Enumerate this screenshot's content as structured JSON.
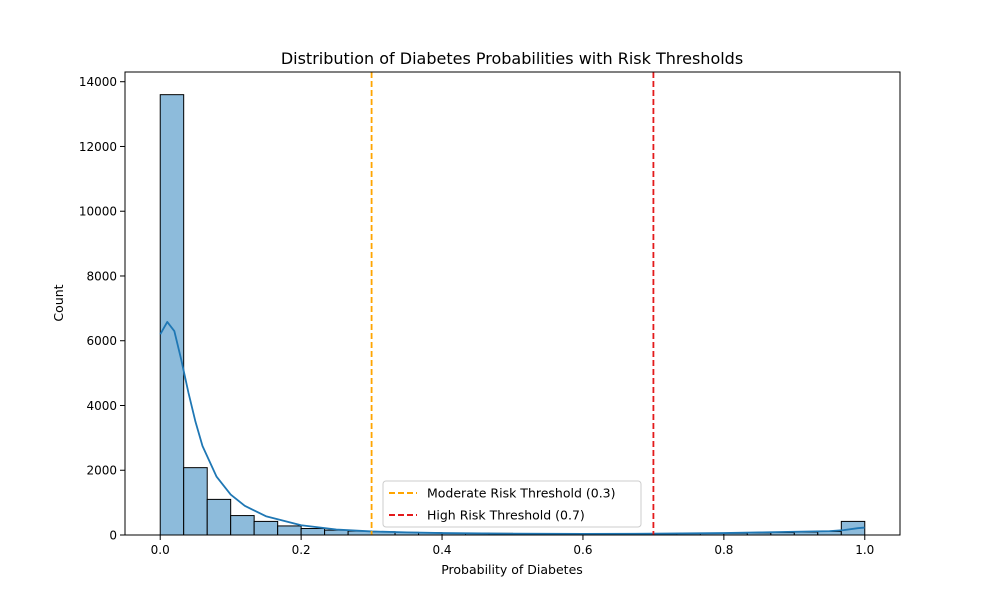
{
  "chart_data": {
    "type": "bar",
    "title": "Distribution of Diabetes Probabilities with Risk Thresholds",
    "xlabel": "Probability of Diabetes",
    "ylabel": "Count",
    "xlim": [
      -0.05,
      1.05
    ],
    "ylim": [
      0,
      14300
    ],
    "xticks": [
      0.0,
      0.2,
      0.4,
      0.6,
      0.8,
      1.0
    ],
    "xtick_labels": [
      "0.0",
      "0.2",
      "0.4",
      "0.6",
      "0.8",
      "1.0"
    ],
    "yticks": [
      0,
      2000,
      4000,
      6000,
      8000,
      10000,
      12000,
      14000
    ],
    "ytick_labels": [
      "0",
      "2000",
      "4000",
      "6000",
      "8000",
      "10000",
      "12000",
      "14000"
    ],
    "bin_edges": [
      0.0,
      0.0333,
      0.0667,
      0.1,
      0.1333,
      0.1667,
      0.2,
      0.2333,
      0.2667,
      0.3,
      0.3333,
      0.3667,
      0.4,
      0.4333,
      0.4667,
      0.5,
      0.5333,
      0.5667,
      0.6,
      0.6333,
      0.6667,
      0.7,
      0.7333,
      0.7667,
      0.8,
      0.8333,
      0.8667,
      0.9,
      0.9333,
      0.9667,
      1.0
    ],
    "counts": [
      13600,
      2080,
      1100,
      600,
      420,
      280,
      200,
      150,
      120,
      100,
      80,
      70,
      60,
      55,
      50,
      45,
      40,
      40,
      40,
      40,
      40,
      40,
      45,
      50,
      55,
      65,
      75,
      90,
      110,
      420
    ],
    "kde": {
      "x": [
        0.0,
        0.01,
        0.02,
        0.03,
        0.04,
        0.05,
        0.06,
        0.08,
        0.1,
        0.12,
        0.15,
        0.2,
        0.25,
        0.3,
        0.35,
        0.4,
        0.5,
        0.6,
        0.7,
        0.8,
        0.85,
        0.9,
        0.95,
        0.97,
        0.99,
        1.0
      ],
      "y": [
        6200,
        6580,
        6300,
        5400,
        4400,
        3500,
        2750,
        1800,
        1250,
        900,
        580,
        300,
        170,
        110,
        80,
        60,
        40,
        35,
        40,
        60,
        80,
        100,
        120,
        150,
        210,
        230
      ]
    },
    "thresholds": [
      {
        "name": "Moderate Risk Threshold (0.3)",
        "x": 0.3,
        "color": "#ffa500"
      },
      {
        "name": "High Risk Threshold (0.7)",
        "x": 0.7,
        "color": "#e31a1c"
      }
    ],
    "colors": {
      "bar_fill": "#8dbbdb",
      "bar_edge": "#000000",
      "kde_line": "#1f77b4"
    },
    "legend_position": "lower-center",
    "grid": false
  }
}
